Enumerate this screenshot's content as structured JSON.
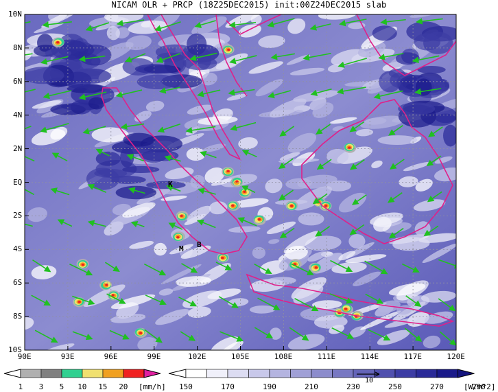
{
  "title": "NICAM OLR + PRCP (18Z25DEC2015) init:00Z24DEC2015 slab",
  "axes": {
    "lon_labels": [
      "90E",
      "93E",
      "96E",
      "99E",
      "102E",
      "105E",
      "108E",
      "111E",
      "114E",
      "117E",
      "120E"
    ],
    "lat_labels": [
      "10N",
      "8N",
      "6N",
      "4N",
      "2N",
      "EQ",
      "2S",
      "4S",
      "6S",
      "8S",
      "10S"
    ]
  },
  "place_labels": [
    {
      "text": "K",
      "name": "place-label-k"
    },
    {
      "text": "M",
      "name": "place-label-m"
    },
    {
      "text": "B",
      "name": "place-label-b"
    }
  ],
  "precip_colorbar": {
    "ticks": [
      "1",
      "3",
      "5",
      "10",
      "15",
      "20"
    ],
    "unit": "[mm/h]",
    "colors": [
      "#b0b0b0",
      "#808080",
      "#30d090",
      "#f0e070",
      "#f0a020",
      "#f02020",
      "#e020a0"
    ]
  },
  "olr_colorbar": {
    "ticks": [
      "150",
      "170",
      "190",
      "210",
      "230",
      "250",
      "270",
      "290"
    ],
    "unit": "[W/m^2]",
    "colors": [
      "#ffffff",
      "#f0f0fa",
      "#dcdcf2",
      "#c8c8ea",
      "#b4b4e0",
      "#a0a0d6",
      "#8c8ccc",
      "#7878c2",
      "#6464b8",
      "#5050ae",
      "#3c3ca4",
      "#2a2a98",
      "#1a1a8a"
    ]
  },
  "ref_vector_label": "10",
  "colors": {
    "coastline": "#e0208a",
    "wind_vectors": "#20c020",
    "background_deep": "#1c1c8c",
    "background_light": "#ffffff"
  }
}
